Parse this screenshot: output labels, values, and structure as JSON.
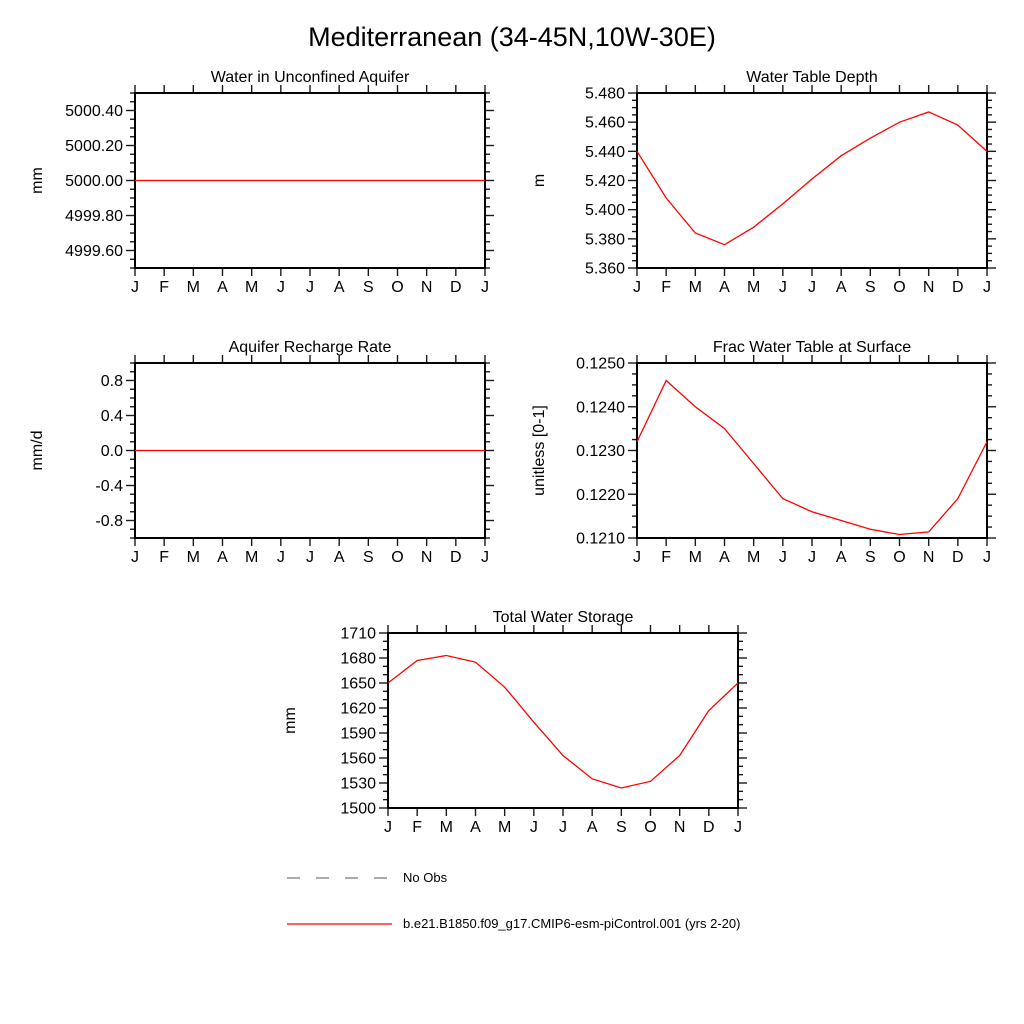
{
  "title": "Mediterranean (34-45N,10W-30E)",
  "x_categories": [
    "J",
    "F",
    "M",
    "A",
    "M",
    "J",
    "J",
    "A",
    "S",
    "O",
    "N",
    "D",
    "J"
  ],
  "series_name": "b.e21.B1850.f09_g17.CMIP6-esm-piControl.001 (yrs 2-20)",
  "colors": {
    "line": "#ff0000",
    "no_obs": "#8f8f8f",
    "axis": "#000000"
  },
  "chart_data": [
    {
      "type": "line",
      "title": "Water in Unconfined Aquifer",
      "ylabel": "mm",
      "categories": [
        "J",
        "F",
        "M",
        "A",
        "M",
        "J",
        "J",
        "A",
        "S",
        "O",
        "N",
        "D",
        "J"
      ],
      "values": [
        5000.0,
        5000.0,
        5000.0,
        5000.0,
        5000.0,
        5000.0,
        5000.0,
        5000.0,
        5000.0,
        5000.0,
        5000.0,
        5000.0,
        5000.0
      ],
      "ylim": [
        4999.5,
        5000.5
      ],
      "y_major": [
        4999.6,
        4999.8,
        5000.0,
        5000.2,
        5000.4
      ],
      "y_tick_labels": [
        "4999.60",
        "4999.80",
        "5000.00",
        "5000.20",
        "5000.40"
      ],
      "y_minor_step": 0.05
    },
    {
      "type": "line",
      "title": "Water Table Depth",
      "ylabel": "m",
      "categories": [
        "J",
        "F",
        "M",
        "A",
        "M",
        "J",
        "J",
        "A",
        "S",
        "O",
        "N",
        "D",
        "J"
      ],
      "values": [
        5.44,
        5.408,
        5.384,
        5.376,
        5.388,
        5.404,
        5.421,
        5.437,
        5.449,
        5.46,
        5.467,
        5.458,
        5.44
      ],
      "ylim": [
        5.36,
        5.48
      ],
      "y_major": [
        5.36,
        5.38,
        5.4,
        5.42,
        5.44,
        5.46,
        5.48
      ],
      "y_tick_labels": [
        "5.360",
        "5.380",
        "5.400",
        "5.420",
        "5.440",
        "5.460",
        "5.480"
      ],
      "y_minor_step": 0.005
    },
    {
      "type": "line",
      "title": "Aquifer Recharge Rate",
      "ylabel": "mm/d",
      "categories": [
        "J",
        "F",
        "M",
        "A",
        "M",
        "J",
        "J",
        "A",
        "S",
        "O",
        "N",
        "D",
        "J"
      ],
      "values": [
        0.0,
        0.0,
        0.0,
        0.0,
        0.0,
        0.0,
        0.0,
        0.0,
        0.0,
        0.0,
        0.0,
        0.0,
        0.0
      ],
      "ylim": [
        -1.0,
        1.0
      ],
      "y_major": [
        -0.8,
        -0.4,
        0.0,
        0.4,
        0.8
      ],
      "y_tick_labels": [
        "-0.8",
        "-0.4",
        "0.0",
        "0.4",
        "0.8"
      ],
      "y_minor_step": 0.1
    },
    {
      "type": "line",
      "title": "Frac Water Table at Surface",
      "ylabel": "unitless [0-1]",
      "categories": [
        "J",
        "F",
        "M",
        "A",
        "M",
        "J",
        "J",
        "A",
        "S",
        "O",
        "N",
        "D",
        "J"
      ],
      "values": [
        0.1232,
        0.1246,
        0.124,
        0.1235,
        0.1227,
        0.1219,
        0.1216,
        0.1214,
        0.1212,
        0.12108,
        0.12114,
        0.1219,
        0.1232
      ],
      "ylim": [
        0.121,
        0.125
      ],
      "y_major": [
        0.121,
        0.122,
        0.123,
        0.124,
        0.125
      ],
      "y_tick_labels": [
        "0.1210",
        "0.1220",
        "0.1230",
        "0.1240",
        "0.1250"
      ],
      "y_minor_step": 0.00025
    },
    {
      "type": "line",
      "title": "Total Water Storage",
      "ylabel": "mm",
      "categories": [
        "J",
        "F",
        "M",
        "A",
        "M",
        "J",
        "J",
        "A",
        "S",
        "O",
        "N",
        "D",
        "J"
      ],
      "values": [
        1650,
        1677,
        1683,
        1675,
        1645,
        1603,
        1563,
        1535,
        1524,
        1532,
        1563,
        1617,
        1650
      ],
      "ylim": [
        1500,
        1710
      ],
      "y_major": [
        1500,
        1530,
        1560,
        1590,
        1620,
        1650,
        1680,
        1710
      ],
      "y_tick_labels": [
        "1500",
        "1530",
        "1560",
        "1590",
        "1620",
        "1650",
        "1680",
        "1710"
      ],
      "y_minor_step": 10
    }
  ],
  "legend": [
    {
      "label": "No Obs",
      "style": "dashed",
      "color": "#8f8f8f"
    },
    {
      "label": "b.e21.B1850.f09_g17.CMIP6-esm-piControl.001 (yrs 2-20)",
      "style": "solid",
      "color": "#ff0000"
    }
  ]
}
